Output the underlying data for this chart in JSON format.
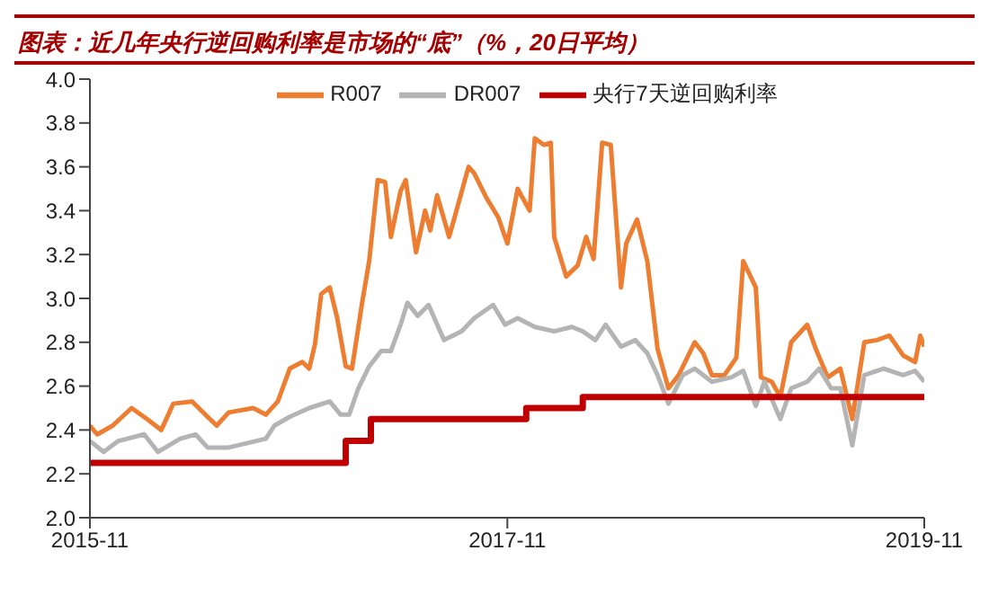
{
  "chart_data": {
    "type": "line",
    "title": "图表：近几年央行逆回购利率是市场的“底”（%，20日平均）",
    "legend": "top",
    "marker": "none",
    "line_style": "solid",
    "xlim": [
      "2015-11",
      "2019-11"
    ],
    "xticks": [
      "2015-11",
      "2017-11",
      "2019-11"
    ],
    "ylim": [
      2,
      4
    ],
    "yticks": [
      {
        "value": 2,
        "label": "2.0"
      },
      2.2,
      2.4,
      2.6,
      2.8,
      {
        "value": 3,
        "label": "3.0"
      },
      3.2,
      3.4,
      3.6,
      3.8,
      {
        "value": 4,
        "label": "4.0"
      }
    ],
    "series": [
      {
        "name": "R007",
        "color": "#ed7d31",
        "x": [
          "2015-11-01",
          "2015-11-14",
          "2015-12-11",
          "2016-01-13",
          "2016-02-09",
          "2016-03-05",
          "2016-03-26",
          "2016-04-28",
          "2016-05-25",
          "2016-06-10",
          "2016-07-01",
          "2016-08-13",
          "2016-09-04",
          "2016-09-25",
          "2016-10-16",
          "2016-11-07",
          "2016-11-19",
          "2016-11-29",
          "2016-12-10",
          "2016-12-25",
          "2017-01-07",
          "2017-01-22",
          "2017-02-02",
          "2017-02-19",
          "2017-03-04",
          "2017-03-19",
          "2017-04-01",
          "2017-04-11",
          "2017-04-28",
          "2017-05-07",
          "2017-05-25",
          "2017-06-10",
          "2017-06-19",
          "2017-07-01",
          "2017-07-22",
          "2017-08-25",
          "2017-09-04",
          "2017-09-25",
          "2017-10-16",
          "2017-11-01",
          "2017-11-19",
          "2017-12-10",
          "2017-12-19",
          "2018-01-04",
          "2018-01-16",
          "2018-01-22",
          "2018-02-12",
          "2018-03-04",
          "2018-03-19",
          "2018-04-01",
          "2018-04-16",
          "2018-05-01",
          "2018-05-19",
          "2018-05-28",
          "2018-06-16",
          "2018-07-04",
          "2018-07-22",
          "2018-08-10",
          "2018-08-28",
          "2018-09-25",
          "2018-10-10",
          "2018-10-25",
          "2018-11-16",
          "2018-12-07",
          "2018-12-19",
          "2019-01-10",
          "2019-01-19",
          "2019-02-07",
          "2019-02-22",
          "2019-03-13",
          "2019-04-10",
          "2019-04-25",
          "2019-05-16",
          "2019-06-07",
          "2019-06-28",
          "2019-07-19",
          "2019-08-10",
          "2019-09-01",
          "2019-09-25",
          "2019-10-16",
          "2019-10-25",
          "2019-11-01"
        ],
        "values": [
          2.42,
          2.38,
          2.42,
          2.5,
          2.45,
          2.4,
          2.52,
          2.53,
          2.46,
          2.42,
          2.48,
          2.5,
          2.47,
          2.53,
          2.68,
          2.71,
          2.68,
          2.79,
          3.02,
          3.05,
          2.91,
          2.69,
          2.68,
          2.97,
          3.17,
          3.54,
          3.53,
          3.28,
          3.49,
          3.54,
          3.21,
          3.4,
          3.31,
          3.47,
          3.28,
          3.6,
          3.57,
          3.46,
          3.37,
          3.25,
          3.5,
          3.4,
          3.73,
          3.7,
          3.71,
          3.28,
          3.1,
          3.15,
          3.28,
          3.18,
          3.71,
          3.7,
          3.05,
          3.25,
          3.36,
          3.17,
          2.77,
          2.59,
          2.65,
          2.8,
          2.75,
          2.65,
          2.65,
          2.73,
          3.17,
          3.05,
          2.64,
          2.62,
          2.55,
          2.8,
          2.88,
          2.77,
          2.64,
          2.68,
          2.45,
          2.8,
          2.81,
          2.83,
          2.74,
          2.71,
          2.83,
          2.78
        ]
      },
      {
        "name": "DR007",
        "color": "#b4b4b4",
        "x": [
          "2015-11-01",
          "2015-11-25",
          "2015-12-21",
          "2016-02-04",
          "2016-02-28",
          "2016-04-07",
          "2016-05-04",
          "2016-05-25",
          "2016-07-01",
          "2016-09-04",
          "2016-09-19",
          "2016-10-16",
          "2016-11-19",
          "2016-12-25",
          "2017-01-13",
          "2017-01-28",
          "2017-02-13",
          "2017-03-04",
          "2017-03-25",
          "2017-04-11",
          "2017-04-28",
          "2017-05-10",
          "2017-05-28",
          "2017-06-16",
          "2017-07-13",
          "2017-08-13",
          "2017-09-04",
          "2017-10-07",
          "2017-10-28",
          "2017-11-19",
          "2017-12-19",
          "2018-01-22",
          "2018-02-22",
          "2018-03-13",
          "2018-04-04",
          "2018-04-22",
          "2018-05-19",
          "2018-06-13",
          "2018-07-04",
          "2018-07-22",
          "2018-08-10",
          "2018-09-04",
          "2018-09-25",
          "2018-10-25",
          "2018-11-28",
          "2018-12-19",
          "2019-01-10",
          "2019-01-25",
          "2019-02-22",
          "2019-03-13",
          "2019-04-10",
          "2019-05-01",
          "2019-05-22",
          "2019-06-07",
          "2019-06-28",
          "2019-07-19",
          "2019-08-22",
          "2019-09-25",
          "2019-10-16",
          "2019-11-01"
        ],
        "values": [
          2.35,
          2.3,
          2.35,
          2.38,
          2.3,
          2.36,
          2.38,
          2.32,
          2.32,
          2.36,
          2.42,
          2.46,
          2.5,
          2.53,
          2.47,
          2.47,
          2.59,
          2.69,
          2.76,
          2.76,
          2.88,
          2.98,
          2.92,
          2.97,
          2.81,
          2.85,
          2.91,
          2.97,
          2.88,
          2.91,
          2.87,
          2.85,
          2.87,
          2.85,
          2.81,
          2.88,
          2.78,
          2.81,
          2.75,
          2.65,
          2.52,
          2.65,
          2.68,
          2.62,
          2.64,
          2.67,
          2.51,
          2.62,
          2.45,
          2.59,
          2.62,
          2.68,
          2.59,
          2.59,
          2.33,
          2.65,
          2.68,
          2.65,
          2.67,
          2.62
        ]
      },
      {
        "name": "央行7天逆回购利率",
        "type": "step",
        "color": "#c00000",
        "x": [
          "2015-11-01",
          "2017-01-22",
          "2017-03-07",
          "2017-12-04",
          "2018-03-13",
          "2019-11-01"
        ],
        "values": [
          2.25,
          2.35,
          2.45,
          2.5,
          2.55,
          2.55
        ]
      }
    ]
  }
}
